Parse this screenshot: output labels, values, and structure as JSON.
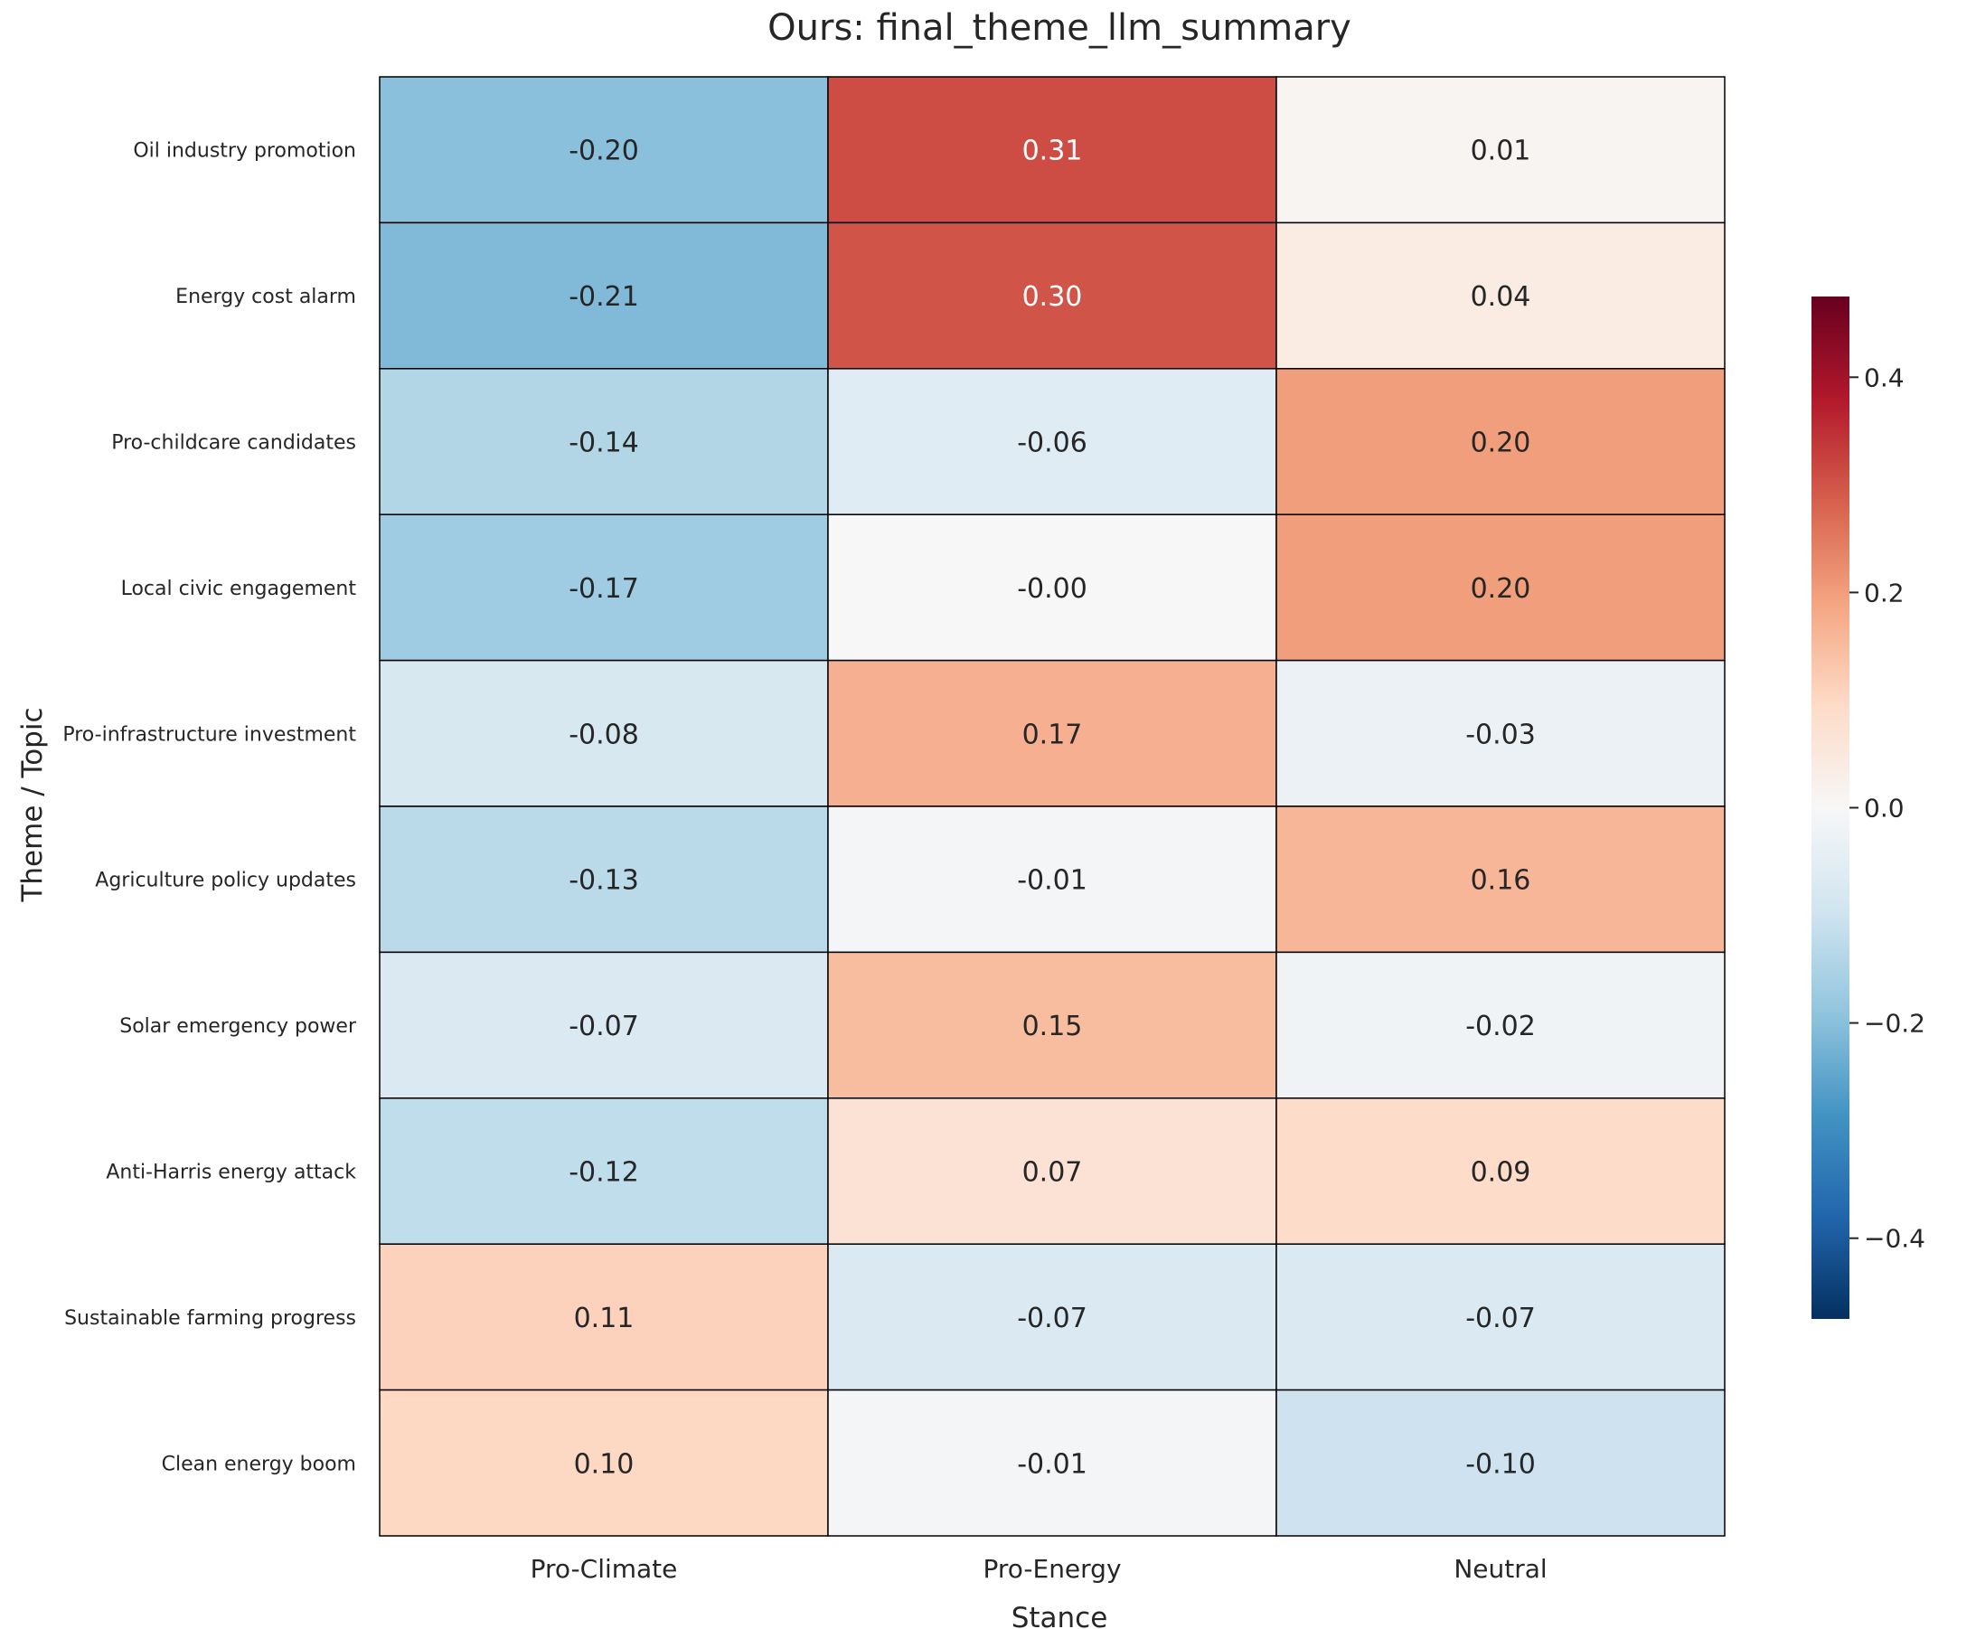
{
  "chart_data": {
    "type": "heatmap",
    "title": "Ours: final_theme_llm_summary",
    "xlabel": "Stance",
    "ylabel": "Theme / Topic",
    "x_categories": [
      "Pro-Climate",
      "Pro-Energy",
      "Neutral"
    ],
    "y_categories": [
      "Oil industry promotion",
      "Energy cost alarm",
      "Pro-childcare candidates",
      "Local civic engagement",
      "Pro-infrastructure investment",
      "Agriculture policy updates",
      "Solar emergency power",
      "Anti-Harris energy attack",
      "Sustainable farming progress",
      "Clean energy boom"
    ],
    "values": [
      [
        -0.2,
        0.31,
        0.01
      ],
      [
        -0.21,
        0.3,
        0.04
      ],
      [
        -0.14,
        -0.06,
        0.2
      ],
      [
        -0.17,
        -0.0,
        0.2
      ],
      [
        -0.08,
        0.17,
        -0.03
      ],
      [
        -0.13,
        -0.01,
        0.16
      ],
      [
        -0.07,
        0.15,
        -0.02
      ],
      [
        -0.12,
        0.07,
        0.09
      ],
      [
        0.11,
        -0.07,
        -0.07
      ],
      [
        0.1,
        -0.01,
        -0.1
      ]
    ],
    "value_labels": [
      [
        "-0.20",
        "0.31",
        "0.01"
      ],
      [
        "-0.21",
        "0.30",
        "0.04"
      ],
      [
        "-0.14",
        "-0.06",
        "0.20"
      ],
      [
        "-0.17",
        "-0.00",
        "0.20"
      ],
      [
        "-0.08",
        "0.17",
        "-0.03"
      ],
      [
        "-0.13",
        "-0.01",
        "0.16"
      ],
      [
        "-0.07",
        "0.15",
        "-0.02"
      ],
      [
        "-0.12",
        "0.07",
        "0.09"
      ],
      [
        "0.11",
        "-0.07",
        "-0.07"
      ],
      [
        "0.10",
        "-0.01",
        "-0.10"
      ]
    ],
    "colorbar": {
      "colormap": "RdBu_r",
      "range": [
        -0.475,
        0.475
      ],
      "ticks": [
        0.4,
        0.2,
        0.0,
        -0.2,
        -0.4
      ],
      "tick_labels": [
        "0.4",
        "0.2",
        "0.0",
        "−0.2",
        "−0.4"
      ]
    }
  }
}
